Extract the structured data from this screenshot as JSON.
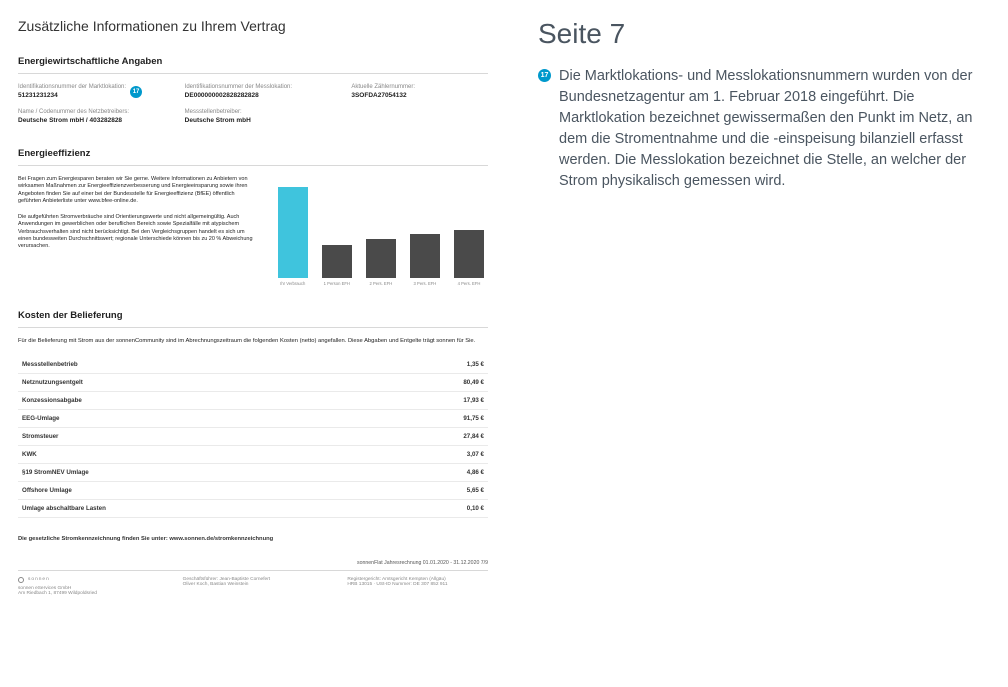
{
  "doc": {
    "title": "Zusätzliche Informationen zu Ihrem Vertrag"
  },
  "energiewirtschaft": {
    "heading": "Energiewirtschaftliche Angaben",
    "row1": [
      {
        "label": "Identifikationsnummer der Marktlokation:",
        "value": "51231231234",
        "badge": "17"
      },
      {
        "label": "Identifikationsnummer der Messlokation:",
        "value": "DE000000002828282828"
      },
      {
        "label": "Aktuelle Zählernummer:",
        "value": "3SOFDA27054132"
      }
    ],
    "row2": [
      {
        "label": "Name / Codenummer des Netzbetreibers:",
        "value": "Deutsche Strom mbH / 403282828"
      },
      {
        "label": "Messstellenbetreiber:",
        "value": "Deutsche Strom mbH"
      }
    ]
  },
  "effizienz": {
    "heading": "Energieeffizienz",
    "para1": "Bei Fragen zum Energiesparen beraten wir Sie gerne. Weitere Informationen zu Anbietern von wirksamen Maßnahmen zur Energieeffizienzverbesserung und Energieeinsparung sowie ihren Angeboten finden Sie auf einer bei der Bundesstelle für Energieeffizienz (BfEE) öffentlich geführten Anbieterliste unter www.bfee-online.de.",
    "para2": "Die aufgeführten Stromverbräuche sind Orientierungswerte und nicht allgemeingültig. Auch Anwendungen im gewerblichen oder beruflichen Bereich sowie Spezialfälle mit atypischem Verbrauchsverhalten sind nicht berücksichtigt. Bei den Vergleichsgruppen handelt es sich um einen bundesweiten Durchschnittswert; regionale Unterschiede können bis zu 20 % Abweichung verursachen.",
    "chart": {
      "type": "bar",
      "ylim": 3200,
      "grid_values": [
        3200,
        2800,
        2400,
        2000,
        1600
      ],
      "bars": [
        {
          "label": "Ihr Verbrauch",
          "value": 2900,
          "color": "#3fc4dd"
        },
        {
          "label": "1 Person EFH",
          "value": 1050,
          "color": "#4a4a4a"
        },
        {
          "label": "2 Pers. EFH",
          "value": 1250,
          "color": "#4a4a4a"
        },
        {
          "label": "3 Pers. EFH",
          "value": 1400,
          "color": "#4a4a4a"
        },
        {
          "label": "4 Pers. EFH",
          "value": 1550,
          "color": "#4a4a4a"
        }
      ],
      "background": "#ffffff",
      "grid_color": "#eeeeee"
    }
  },
  "kosten": {
    "heading": "Kosten der Belieferung",
    "intro": "Für die Belieferung mit Strom aus der sonnenCommunity sind im Abrechnungszeitraum die folgenden Kosten (netto) angefallen. Diese Abgaben und Entgelte trägt sonnen für Sie.",
    "rows": [
      {
        "name": "Messstellenbetrieb",
        "value": "1,35 €"
      },
      {
        "name": "Netznutzungsentgelt",
        "value": "80,49 €"
      },
      {
        "name": "Konzessionsabgabe",
        "value": "17,93 €"
      },
      {
        "name": "EEG-Umlage",
        "value": "91,75 €"
      },
      {
        "name": "Stromsteuer",
        "value": "27,84 €"
      },
      {
        "name": "KWK",
        "value": "3,07 €"
      },
      {
        "name": "§19 StromNEV Umlage",
        "value": "4,86 €"
      },
      {
        "name": "Offshore Umlage",
        "value": "5,65 €"
      },
      {
        "name": "Umlage abschaltbare Lasten",
        "value": "0,10 €"
      }
    ]
  },
  "legal": "Die gesetzliche Stromkennzeichnung finden Sie unter: www.sonnen.de/stromkennzeichnung",
  "footer": {
    "page_line": "sonnenFlat Jahresrechnung 01.01.2020 - 31.12.2020   7/9",
    "brand": "sonnen",
    "col1a": "sonnen eServices GmbH",
    "col1b": "Am Riedbach 1, 87499 Wildpoldsried",
    "col2a": "Geschäftsführer: Jean-Baptiste Cornefert",
    "col2b": "Oliver Koch, Bastian Weinstein",
    "col3a": "Registergericht: Amtsgericht Kempten (Allgäu)",
    "col3b": "HRB 13015 · USt-ID Nummer: DE 307 852 911"
  },
  "side": {
    "title": "Seite 7",
    "badge": "17",
    "text": "Die Marktlokations- und Messlokationsnummern wurden von der Bundesnetzagentur am 1. Februar 2018 eingeführt. Die Marktlokation bezeichnet gewissermaßen den Punkt im Netz, an dem die Stromentnahme und die -einspeisung bilanziell erfasst werden. Die Messlokation bezeichnet die Stelle, an welcher der Strom physikalisch gemessen wird."
  }
}
